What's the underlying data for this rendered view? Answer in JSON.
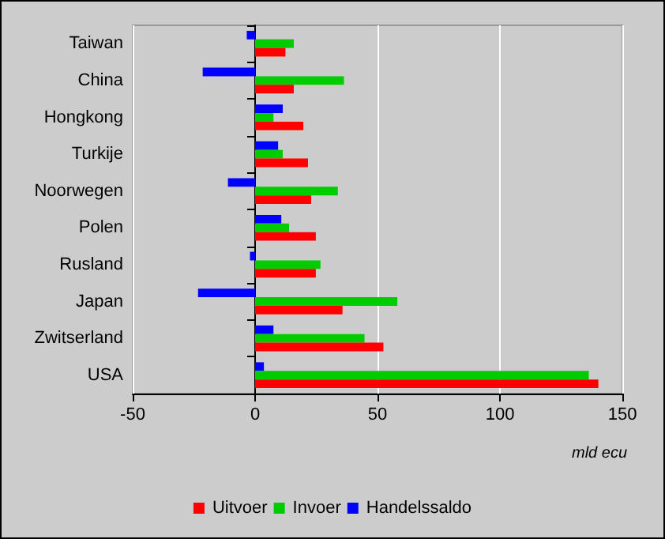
{
  "chart_data": {
    "type": "bar",
    "orientation": "horizontal",
    "xlabel": "mld ecu",
    "categories": [
      "Taiwan",
      "China",
      "Hongkong",
      "Turkije",
      "Noorwegen",
      "Polen",
      "Rusland",
      "Japan",
      "Zwitserland",
      "USA"
    ],
    "series": [
      {
        "name": "Uitvoer",
        "color": "#ff0000",
        "values": [
          12.4,
          15.8,
          19.7,
          21.6,
          22.9,
          24.8,
          24.8,
          35.7,
          52.4,
          140.2
        ]
      },
      {
        "name": "Invoer",
        "color": "#00cc00",
        "values": [
          15.8,
          36.3,
          7.5,
          11.3,
          33.8,
          13.9,
          26.7,
          58.1,
          44.7,
          136.3
        ]
      },
      {
        "name": "Handelssaldo",
        "color": "#0000ff",
        "values": [
          -3.4,
          -21.4,
          11.3,
          9.4,
          -11.1,
          10.7,
          -2.1,
          -23.3,
          7.5,
          3.6
        ]
      }
    ],
    "xlim": [
      -50,
      150
    ],
    "xticks": [
      -50,
      0,
      50,
      100,
      150
    ],
    "grid": "x",
    "legend": "bottom"
  }
}
